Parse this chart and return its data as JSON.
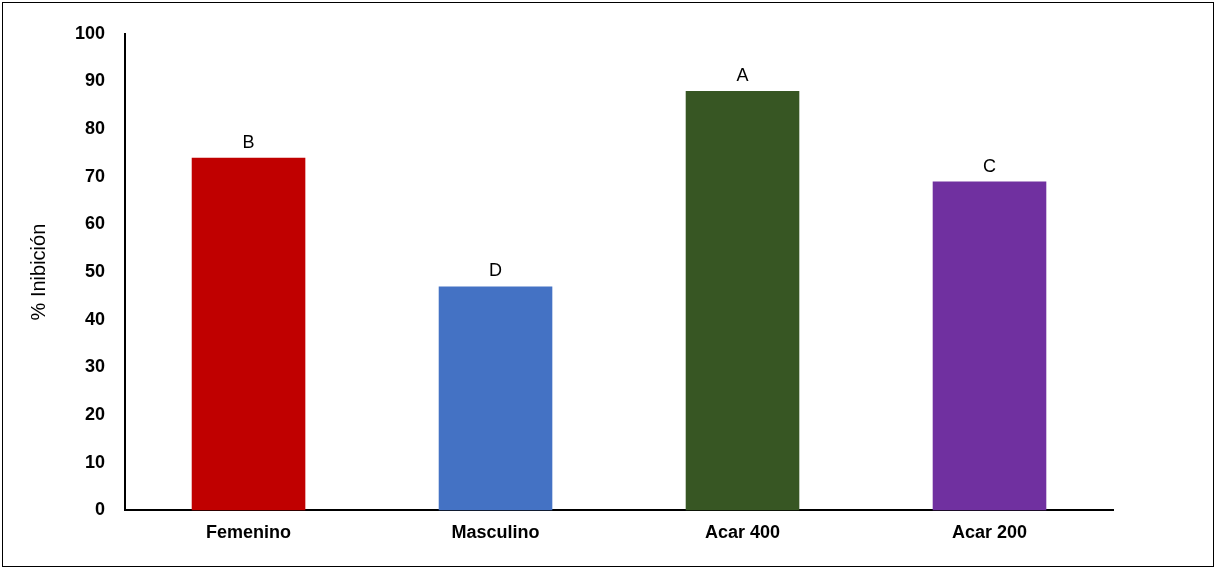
{
  "chart_data": {
    "type": "bar",
    "ylabel": "% Inibición",
    "categories": [
      "Femenino",
      "Masculino",
      "Acar 400",
      "Acar 200"
    ],
    "values": [
      74,
      47,
      88,
      69
    ],
    "colors": [
      "#c00000",
      "#4472c4",
      "#375623",
      "#7030a0"
    ],
    "ylim": [
      0,
      100
    ],
    "yticks": [
      0,
      10,
      20,
      30,
      40,
      50,
      60,
      70,
      80,
      90,
      100
    ],
    "grid": false,
    "legend": false,
    "annotations": [
      {
        "text": "B",
        "x": "Femenino",
        "y": 74
      },
      {
        "text": "D",
        "x": "Masculino",
        "y": 47
      },
      {
        "text": "A",
        "x": "Acar 400",
        "y": 88
      },
      {
        "text": "C",
        "x": "Acar 200",
        "y": 69
      }
    ]
  }
}
